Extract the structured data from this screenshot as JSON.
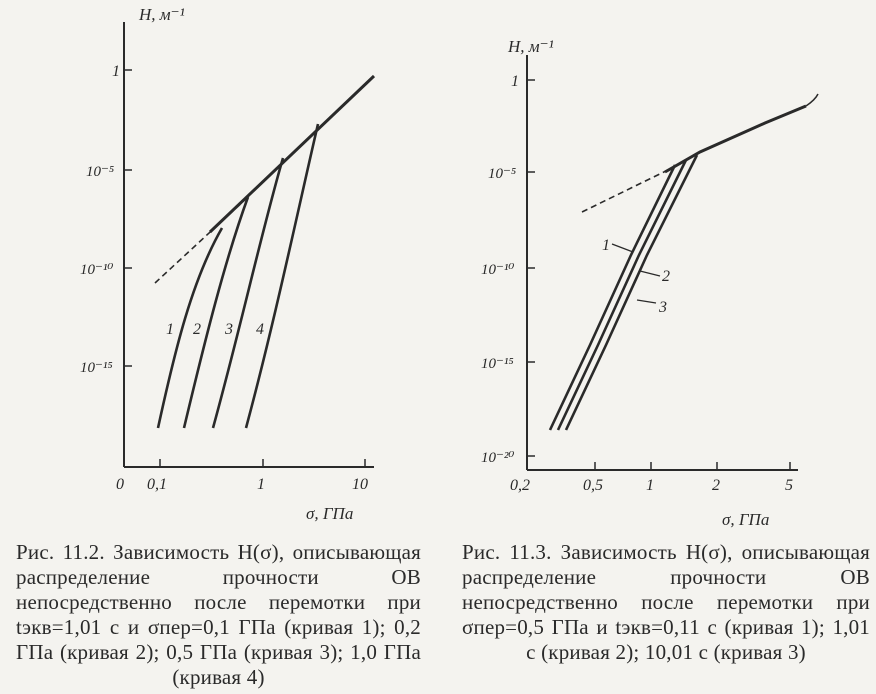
{
  "figures": [
    {
      "y_axis_label": "H, м⁻¹",
      "x_axis_label": "σ, ГПа",
      "x_ticks": [
        "0",
        "0,1",
        "1",
        "10"
      ],
      "y_ticks": [
        "1",
        "10⁻⁵",
        "10⁻¹⁰",
        "10⁻¹⁵"
      ],
      "curve_labels": [
        "1",
        "2",
        "3",
        "4"
      ],
      "caption": "Рис. 11.2. Зависимость H(σ), описывающая распределение прочности ОВ непосредственно после перемотки при tэкв=1,01 с и σпер=0,1 ГПа (кривая 1); 0,2 ГПа (кривая 2); 0,5 ГПа (кривая 3); 1,0 ГПа (кривая 4)"
    },
    {
      "y_axis_label": "H, м⁻¹",
      "x_axis_label": "σ, ГПа",
      "x_ticks": [
        "0,2",
        "0,5",
        "1",
        "2",
        "5"
      ],
      "y_ticks": [
        "1",
        "10⁻⁵",
        "10⁻¹⁰",
        "10⁻¹⁵",
        "10⁻²⁰"
      ],
      "curve_labels": [
        "1",
        "2",
        "3"
      ],
      "caption": "Рис. 11.3. Зависимость H(σ), описывающая распределение прочности ОВ непосредственно после перемотки при σпер=0,5 ГПа и tэкв=0,11 с (кривая 1); 1,01 с (кривая 2); 10,01 с (кривая 3)"
    }
  ],
  "colors": {
    "ink": "#2a2a2a",
    "paper": "#f4f3ef"
  }
}
